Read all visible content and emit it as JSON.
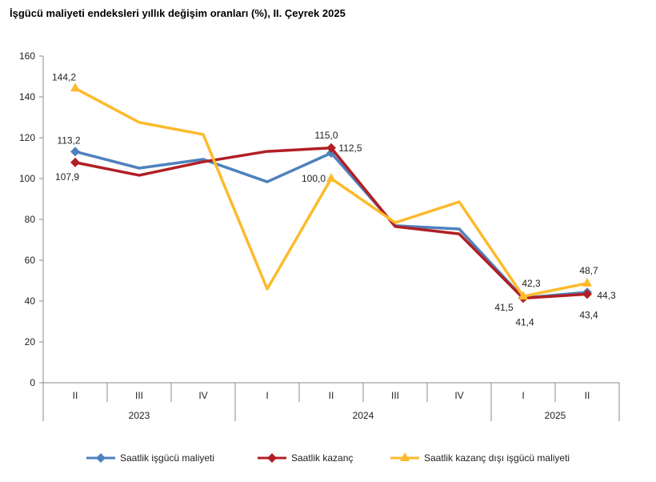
{
  "chart_data": {
    "type": "line",
    "title": "İşgücü maliyeti endeksleri yıllık değişim oranları (%), II. Çeyrek 2025",
    "xlabel": "",
    "ylabel": "",
    "ylim": [
      0,
      160
    ],
    "yticks": [
      "0",
      "20",
      "40",
      "60",
      "80",
      "100",
      "120",
      "140",
      "160"
    ],
    "categories": [
      "II",
      "III",
      "IV",
      "I",
      "II",
      "III",
      "IV",
      "I",
      "II"
    ],
    "years": [
      {
        "label": "2023",
        "span": 3
      },
      {
        "label": "2024",
        "span": 4
      },
      {
        "label": "2025",
        "span": 2
      }
    ],
    "legend_position": "bottom",
    "series": [
      {
        "name": "Saatlik işgücü maliyeti",
        "color": "#4F81BD",
        "marker": "diamond",
        "values": [
          113.2,
          105.1,
          109.4,
          98.4,
          112.5,
          76.9,
          75.3,
          41.5,
          44.3
        ],
        "labels": [
          {
            "i": 0,
            "text": "113,2",
            "dx": -8,
            "dy": -14
          },
          {
            "i": 4,
            "text": "112,5",
            "dx": 24,
            "dy": -6
          },
          {
            "i": 7,
            "text": "41,5",
            "dx": -24,
            "dy": 12
          },
          {
            "i": 8,
            "text": "44,3",
            "dx": 24,
            "dy": 4
          }
        ]
      },
      {
        "name": "Saatlik kazanç",
        "color": "#B11F24",
        "marker": "diamond",
        "values": [
          107.9,
          101.6,
          108.2,
          113.3,
          115.0,
          76.5,
          72.9,
          41.4,
          43.4
        ],
        "labels": [
          {
            "i": 0,
            "text": "107,9",
            "dx": -10,
            "dy": 18
          },
          {
            "i": 4,
            "text": "115,0",
            "dx": -6,
            "dy": -16
          },
          {
            "i": 7,
            "text": "41,4",
            "dx": 2,
            "dy": 30
          },
          {
            "i": 8,
            "text": "43,4",
            "dx": 2,
            "dy": 26
          }
        ]
      },
      {
        "name": "Saatlik kazanç dışı işgücü maliyeti",
        "color": "#FDBA2C",
        "marker": "triangle",
        "values": [
          144.2,
          127.5,
          121.6,
          45.9,
          100.0,
          78.4,
          88.6,
          42.3,
          48.7
        ],
        "labels": [
          {
            "i": 0,
            "text": "144,2",
            "dx": -14,
            "dy": -14
          },
          {
            "i": 4,
            "text": "100,0",
            "dx": -22,
            "dy": 0
          },
          {
            "i": 7,
            "text": "42,3",
            "dx": 10,
            "dy": -16
          },
          {
            "i": 8,
            "text": "48,7",
            "dx": 2,
            "dy": -16
          }
        ]
      }
    ]
  }
}
